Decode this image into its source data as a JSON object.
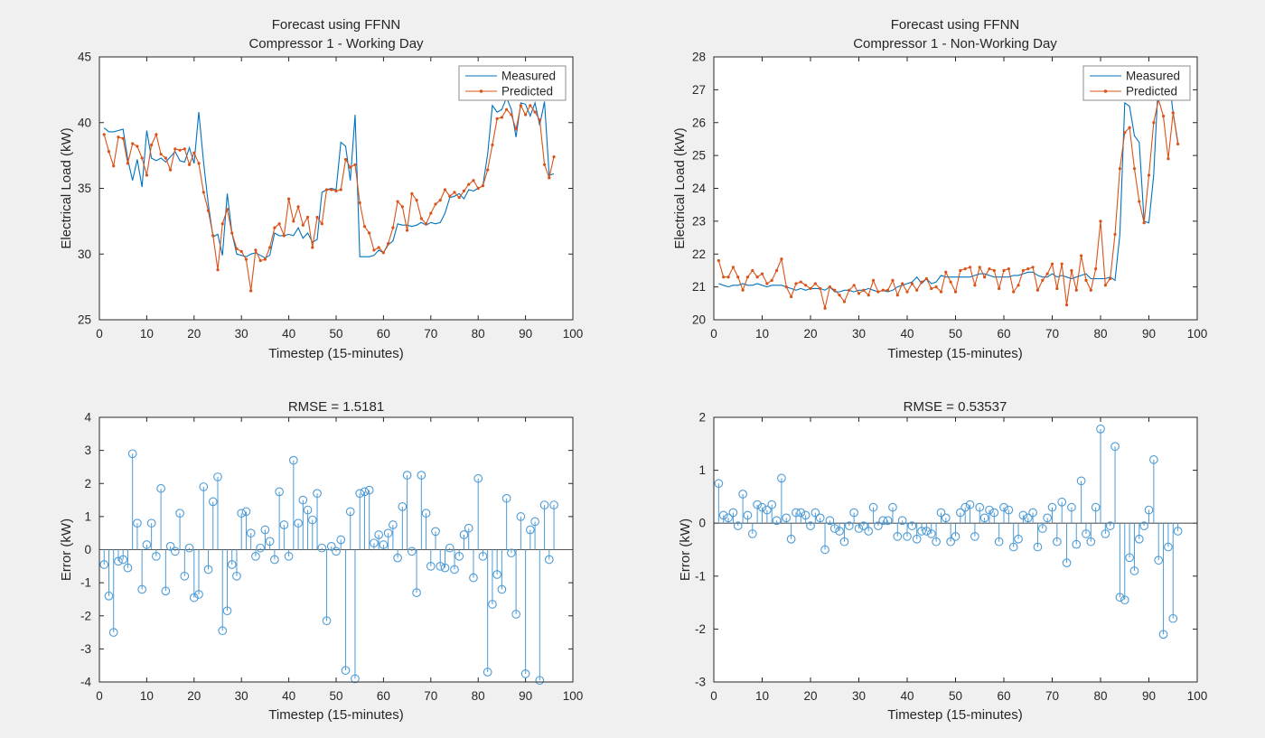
{
  "figure": {
    "background": "#F0F0F0",
    "axis_color": "#262626",
    "stem_baseline_color": "#545454",
    "legend_border_color": "#8C8C8C"
  },
  "chart_data": [
    {
      "type": "line",
      "title": "Forecast using FFNN",
      "subtitle": "Compressor 1 - Working Day",
      "xlabel": "Timestep (15-minutes)",
      "ylabel": "Electrical Load (kW)",
      "xlim": [
        0,
        100
      ],
      "ylim": [
        25,
        45
      ],
      "xticks": [
        0,
        10,
        20,
        30,
        40,
        50,
        60,
        70,
        80,
        90,
        100
      ],
      "yticks": [
        25,
        30,
        35,
        40,
        45
      ],
      "grid": false,
      "legend_position": "top-right",
      "x_start": 1,
      "series": [
        {
          "name": "Measured",
          "color": "#0072BD",
          "marker": "none",
          "values": [
            39.6,
            39.3,
            39.3,
            39.4,
            39.5,
            37.2,
            35.6,
            37.2,
            35.1,
            39.4,
            37.3,
            37.1,
            37.3,
            37.0,
            37.4,
            37.8,
            37.1,
            37.0,
            38.1,
            36.9,
            40.8,
            37.0,
            33.8,
            31.3,
            31.5,
            29.9,
            34.6,
            31.6,
            30.0,
            29.9,
            29.8,
            30.0,
            30.1,
            29.9,
            29.7,
            29.9,
            31.6,
            31.4,
            31.4,
            31.5,
            31.4,
            32.0,
            31.2,
            31.6,
            30.9,
            31.1,
            34.7,
            34.9,
            35.0,
            34.9,
            38.5,
            38.2,
            35.6,
            40.6,
            29.8,
            29.8,
            29.8,
            29.9,
            30.3,
            30.1,
            30.7,
            31.0,
            32.3,
            32.2,
            32.2,
            32.1,
            32.2,
            32.4,
            32.2,
            32.4,
            32.3,
            32.4,
            33.1,
            34.3,
            34.4,
            34.6,
            34.2,
            34.9,
            34.8,
            35.0,
            35.2,
            37.6,
            41.3,
            40.8,
            41.0,
            41.9,
            41.0,
            38.9,
            41.5,
            41.4,
            40.5,
            41.5,
            39.8,
            41.6,
            36.0,
            36.1
          ]
        },
        {
          "name": "Predicted",
          "color": "#D95319",
          "marker": "dot",
          "values": [
            39.1,
            37.8,
            36.7,
            38.9,
            38.8,
            36.9,
            38.4,
            38.2,
            37.3,
            36.0,
            38.3,
            39.1,
            37.6,
            37.3,
            36.4,
            38.0,
            37.9,
            38.0,
            36.8,
            37.7,
            36.9,
            34.7,
            33.3,
            31.4,
            28.8,
            32.3,
            33.4,
            31.6,
            30.4,
            30.2,
            29.6,
            27.2,
            30.3,
            29.5,
            29.6,
            30.5,
            32.0,
            32.3,
            31.4,
            34.2,
            32.5,
            33.6,
            32.2,
            32.8,
            30.5,
            32.8,
            32.3,
            34.9,
            34.9,
            34.8,
            34.9,
            37.2,
            36.6,
            36.8,
            33.9,
            32.1,
            31.6,
            30.3,
            30.5,
            30.1,
            30.8,
            32.0,
            34.0,
            33.6,
            31.8,
            34.6,
            34.1,
            32.7,
            32.3,
            33.1,
            33.8,
            34.1,
            34.9,
            34.4,
            34.7,
            34.3,
            34.8,
            35.3,
            35.6,
            35.0,
            35.2,
            36.4,
            38.3,
            40.3,
            40.4,
            41.0,
            40.6,
            39.5,
            41.3,
            40.6,
            41.3,
            40.8,
            40.2,
            36.8,
            35.8,
            37.4
          ]
        }
      ]
    },
    {
      "type": "line",
      "title": "Forecast using FFNN",
      "subtitle": "Compressor 1 - Non-Working Day",
      "xlabel": "Timestep (15-minutes)",
      "ylabel": "Electrical Load (kW)",
      "xlim": [
        0,
        100
      ],
      "ylim": [
        20,
        28
      ],
      "xticks": [
        0,
        10,
        20,
        30,
        40,
        50,
        60,
        70,
        80,
        90,
        100
      ],
      "yticks": [
        20,
        21,
        22,
        23,
        24,
        25,
        26,
        27,
        28
      ],
      "grid": false,
      "legend_position": "top-right",
      "x_start": 1,
      "series": [
        {
          "name": "Measured",
          "color": "#0072BD",
          "marker": "none",
          "values": [
            21.1,
            21.05,
            21.0,
            21.05,
            21.05,
            21.1,
            21.05,
            21.05,
            21.1,
            21.05,
            21.0,
            21.05,
            21.05,
            21.05,
            21.0,
            20.95,
            20.9,
            20.95,
            20.9,
            20.95,
            20.95,
            20.95,
            20.9,
            21.0,
            20.85,
            20.85,
            20.9,
            20.9,
            20.85,
            20.9,
            20.9,
            20.95,
            20.9,
            20.85,
            20.9,
            20.85,
            20.9,
            21.0,
            21.05,
            21.1,
            21.15,
            21.3,
            21.1,
            21.25,
            21.1,
            21.15,
            21.35,
            21.3,
            21.3,
            21.3,
            21.3,
            21.3,
            21.3,
            21.35,
            21.4,
            21.4,
            21.35,
            21.3,
            21.3,
            21.3,
            21.3,
            21.35,
            21.35,
            21.4,
            21.45,
            21.45,
            21.35,
            21.3,
            21.3,
            21.4,
            21.3,
            21.35,
            21.3,
            21.25,
            21.3,
            21.35,
            21.4,
            21.25,
            21.25,
            21.25,
            21.25,
            21.3,
            21.2,
            22.6,
            26.6,
            26.5,
            25.6,
            25.4,
            23.0,
            22.95,
            24.4,
            27.4,
            27.6,
            27.5,
            26.3,
            25.4
          ]
        },
        {
          "name": "Predicted",
          "color": "#D95319",
          "marker": "dot",
          "values": [
            21.8,
            21.3,
            21.3,
            21.6,
            21.3,
            20.9,
            21.3,
            21.5,
            21.3,
            21.4,
            21.1,
            21.2,
            21.5,
            21.85,
            21.0,
            20.7,
            21.1,
            21.15,
            21.05,
            20.95,
            21.1,
            20.95,
            20.35,
            21.0,
            20.9,
            20.75,
            20.55,
            20.9,
            21.05,
            20.8,
            20.9,
            20.75,
            21.2,
            20.85,
            20.9,
            20.9,
            21.2,
            20.75,
            21.1,
            20.85,
            21.1,
            20.9,
            21.15,
            21.25,
            20.95,
            21.0,
            20.85,
            21.45,
            21.15,
            20.85,
            21.5,
            21.55,
            21.6,
            21.05,
            21.6,
            21.3,
            21.55,
            21.5,
            20.95,
            21.5,
            21.55,
            20.85,
            21.05,
            21.5,
            21.55,
            21.6,
            20.9,
            21.2,
            21.4,
            21.7,
            20.95,
            21.7,
            20.45,
            21.5,
            20.9,
            21.95,
            21.2,
            20.9,
            21.55,
            23.0,
            21.05,
            21.25,
            22.6,
            24.6,
            25.7,
            25.85,
            24.6,
            23.6,
            22.95,
            24.4,
            26.0,
            26.7,
            26.2,
            24.9,
            26.3,
            25.35
          ]
        }
      ]
    },
    {
      "type": "stem",
      "title": "RMSE = 1.5181",
      "xlabel": "Timestep (15-minutes)",
      "ylabel": "Error (kW)",
      "xlim": [
        0,
        100
      ],
      "ylim": [
        -4,
        4
      ],
      "xticks": [
        0,
        10,
        20,
        30,
        40,
        50,
        60,
        70,
        80,
        90,
        100
      ],
      "yticks": [
        -4,
        -3,
        -2,
        -1,
        0,
        1,
        2,
        3,
        4
      ],
      "grid": false,
      "x_start": 1,
      "series": [
        {
          "name": "Error",
          "color": "#4D9BD6",
          "marker": "circle",
          "values": [
            -0.45,
            -1.4,
            -2.5,
            -0.35,
            -0.3,
            -0.55,
            2.9,
            0.8,
            -1.2,
            0.15,
            0.8,
            -0.2,
            1.85,
            -1.25,
            0.1,
            -0.05,
            1.1,
            -0.8,
            0.05,
            -1.45,
            -1.35,
            1.9,
            -0.6,
            1.45,
            2.2,
            -2.45,
            -1.85,
            -0.45,
            -0.8,
            1.1,
            1.15,
            0.5,
            -0.2,
            0.05,
            0.6,
            0.25,
            -0.3,
            1.75,
            0.75,
            -0.2,
            2.7,
            0.8,
            1.5,
            1.2,
            0.9,
            1.7,
            0.05,
            -2.15,
            0.1,
            -0.05,
            0.3,
            -3.65,
            1.15,
            -3.9,
            1.7,
            1.75,
            1.8,
            0.2,
            0.45,
            0.15,
            0.5,
            0.75,
            -0.25,
            1.3,
            2.25,
            -0.05,
            -1.3,
            2.25,
            1.1,
            -0.5,
            0.55,
            -0.5,
            -0.55,
            0.05,
            -0.6,
            -0.2,
            0.45,
            0.65,
            -0.85,
            2.15,
            -0.2,
            -3.7,
            -1.65,
            -0.75,
            -1.2,
            1.55,
            -0.1,
            -1.95,
            1.0,
            -3.75,
            0.6,
            0.85,
            -3.95,
            1.35,
            -0.3,
            1.35
          ]
        }
      ]
    },
    {
      "type": "stem",
      "title": "RMSE = 0.53537",
      "xlabel": "Timestep (15-minutes)",
      "ylabel": "Error (kW)",
      "xlim": [
        0,
        100
      ],
      "ylim": [
        -3,
        2
      ],
      "xticks": [
        0,
        10,
        20,
        30,
        40,
        50,
        60,
        70,
        80,
        90,
        100
      ],
      "yticks": [
        -3,
        -2,
        -1,
        0,
        1,
        2
      ],
      "grid": false,
      "x_start": 1,
      "series": [
        {
          "name": "Error",
          "color": "#4D9BD6",
          "marker": "circle",
          "values": [
            0.75,
            0.15,
            0.1,
            0.2,
            -0.05,
            0.55,
            0.15,
            -0.2,
            0.35,
            0.3,
            0.25,
            0.35,
            0.05,
            0.85,
            0.1,
            -0.3,
            0.2,
            0.2,
            0.15,
            -0.05,
            0.2,
            0.1,
            -0.5,
            0.05,
            -0.1,
            -0.15,
            -0.35,
            -0.05,
            0.2,
            -0.1,
            -0.05,
            -0.15,
            0.3,
            -0.05,
            0.05,
            0.05,
            0.3,
            -0.25,
            0.05,
            -0.25,
            -0.05,
            -0.3,
            -0.15,
            -0.15,
            -0.2,
            -0.35,
            0.2,
            0.1,
            -0.35,
            -0.25,
            0.2,
            0.3,
            0.35,
            -0.25,
            0.3,
            0.1,
            0.25,
            0.2,
            -0.35,
            0.3,
            0.25,
            -0.45,
            -0.3,
            0.15,
            0.1,
            0.2,
            -0.45,
            -0.1,
            0.1,
            0.3,
            -0.35,
            0.4,
            -0.75,
            0.3,
            -0.4,
            0.8,
            -0.2,
            -0.35,
            0.3,
            1.78,
            -0.2,
            -0.05,
            1.45,
            -1.4,
            -1.45,
            -0.65,
            -0.9,
            -0.3,
            -0.05,
            0.25,
            1.2,
            -0.7,
            -2.1,
            -0.45,
            -1.8,
            -0.15
          ]
        }
      ]
    }
  ]
}
